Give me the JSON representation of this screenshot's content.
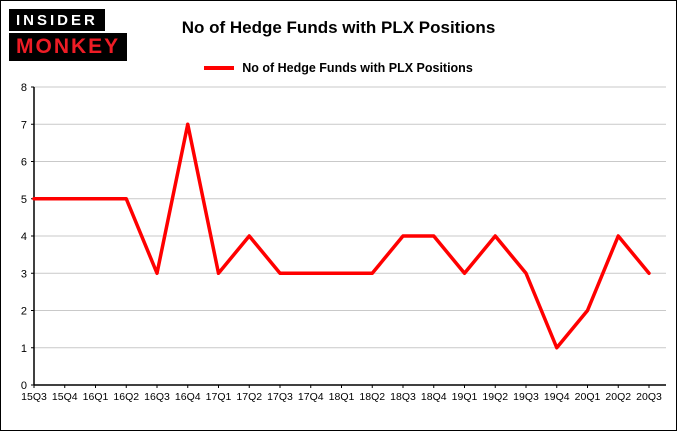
{
  "logo": {
    "line1": "INSIDER",
    "line2": "MONKEY"
  },
  "colors": {
    "line": "#ff0000",
    "grid": "#c9c9c9",
    "axis": "#000000",
    "logo_bg": "#000000",
    "logo_text_top": "#ffffff",
    "logo_text_bottom": "#ee1c25"
  },
  "chart_data": {
    "type": "line",
    "title": "No of Hedge Funds with PLX Positions",
    "legend": "No of Hedge Funds with PLX Positions",
    "legend_position": "top",
    "grid": true,
    "categories": [
      "15Q3",
      "15Q4",
      "16Q1",
      "16Q2",
      "16Q3",
      "16Q4",
      "17Q1",
      "17Q2",
      "17Q3",
      "17Q4",
      "18Q1",
      "18Q2",
      "18Q3",
      "18Q4",
      "19Q1",
      "19Q2",
      "19Q3",
      "19Q4",
      "20Q1",
      "20Q2",
      "20Q3"
    ],
    "values": [
      5,
      5,
      5,
      5,
      3,
      7,
      3,
      4,
      3,
      3,
      3,
      3,
      4,
      4,
      3,
      4,
      3,
      1,
      2,
      4,
      3
    ],
    "ylim": [
      0,
      8
    ],
    "yticks": [
      0,
      1,
      2,
      3,
      4,
      5,
      6,
      7,
      8
    ],
    "xlabel": "",
    "ylabel": "",
    "line_color": "#ff0000"
  }
}
